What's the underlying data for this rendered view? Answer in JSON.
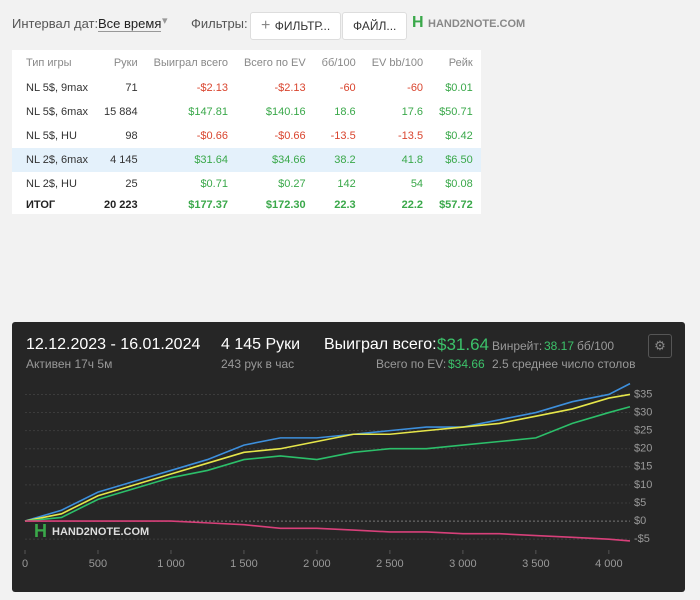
{
  "toolbar": {
    "interval_label": "Интервал дат:",
    "interval_value": "Все время",
    "filters_label": "Фильтры:",
    "filter_button": "ФИЛЬТР...",
    "file_button": "ФАЙЛ...",
    "logo": "HAND2NOTE.COM"
  },
  "table": {
    "header": [
      "Тип игры",
      "Руки",
      "Выиграл всего",
      "Всего по EV",
      "бб/100",
      "EV bb/100",
      "Рейк"
    ],
    "rows": [
      [
        "NL 5$, 9max",
        "71",
        "-$2.13",
        "-$2.13",
        "-60",
        "-60",
        "$0.01"
      ],
      [
        "NL 5$, 6max",
        "15 884",
        "$147.81",
        "$140.16",
        "18.6",
        "17.6",
        "$50.71"
      ],
      [
        "NL 5$, HU",
        "98",
        "-$0.66",
        "-$0.66",
        "-13.5",
        "-13.5",
        "$0.42"
      ],
      [
        "NL 2$, 6max",
        "4 145",
        "$31.64",
        "$34.66",
        "38.2",
        "41.8",
        "$6.50"
      ],
      [
        "NL 2$, HU",
        "25",
        "$0.71",
        "$0.27",
        "142",
        "54",
        "$0.08"
      ],
      [
        "ИТОГ",
        "20 223",
        "$177.37",
        "$172.30",
        "22.3",
        "22.2",
        "$57.72"
      ]
    ]
  },
  "panel": {
    "dates": "12.12.2023 - 16.01.2024",
    "active": "Активен 17ч 5м",
    "hands": "4 145 Руки",
    "hands_per_hour": "243 рук в час",
    "won_label": "Выиграл всего:",
    "won_value": "$31.64",
    "ev_label": "Всего по EV:",
    "ev_value": "$34.66",
    "winrate_label": "Винрейт:",
    "winrate_value": "38.17",
    "winrate_unit": "бб/100",
    "avg_tables": "2.5 среднее число столов",
    "watermark": "HAND2NOTE.COM"
  },
  "chart_data": {
    "type": "line",
    "x": [
      0,
      250,
      500,
      750,
      1000,
      1250,
      1500,
      1750,
      2000,
      2250,
      2500,
      2750,
      3000,
      3250,
      3500,
      3750,
      4000,
      4145
    ],
    "series": [
      {
        "color": "#3d8fdc",
        "values": [
          0,
          3,
          8,
          11,
          14,
          17,
          21,
          23,
          23,
          24,
          25,
          26,
          26,
          28,
          30,
          33,
          35,
          38
        ]
      },
      {
        "color": "#e6e64a",
        "values": [
          0,
          2,
          7,
          10,
          13,
          16,
          19,
          20,
          22,
          24,
          24,
          25,
          26,
          27,
          29,
          31,
          34,
          35
        ]
      },
      {
        "color": "#2cbf6a",
        "values": [
          0,
          1,
          6,
          9,
          12,
          14,
          17,
          18,
          17,
          19,
          20,
          20,
          21,
          22,
          23,
          27,
          30,
          31.6
        ]
      },
      {
        "color": "#d8407a",
        "values": [
          0,
          0,
          0,
          0,
          0,
          -0.5,
          -1,
          -2,
          -2,
          -2.5,
          -3,
          -3,
          -3.5,
          -3.5,
          -4,
          -4.5,
          -5,
          -5.5
        ]
      }
    ],
    "xlim": [
      0,
      4145
    ],
    "ylim": [
      -8,
      39
    ],
    "xticks": [
      0,
      {
        "value": 500,
        "label": "500"
      },
      {
        "value": 1000,
        "label": "1 000"
      },
      {
        "value": 1500,
        "label": "1 500"
      },
      {
        "value": 2000,
        "label": "2 000"
      },
      {
        "value": 2500,
        "label": "2 500"
      },
      {
        "value": 3000,
        "label": "3 000"
      },
      {
        "value": 3500,
        "label": "3 500"
      },
      {
        "value": 4000,
        "label": "4 000"
      }
    ],
    "yticks": [
      {
        "value": -5,
        "label": "-$5"
      },
      {
        "value": 0,
        "label": "$0"
      },
      {
        "value": 5,
        "label": "$5"
      },
      {
        "value": 10,
        "label": "$10"
      },
      {
        "value": 15,
        "label": "$15"
      },
      {
        "value": 20,
        "label": "$20"
      },
      {
        "value": 25,
        "label": "$25"
      },
      {
        "value": 30,
        "label": "$30"
      },
      {
        "value": 35,
        "label": "$35"
      }
    ]
  }
}
